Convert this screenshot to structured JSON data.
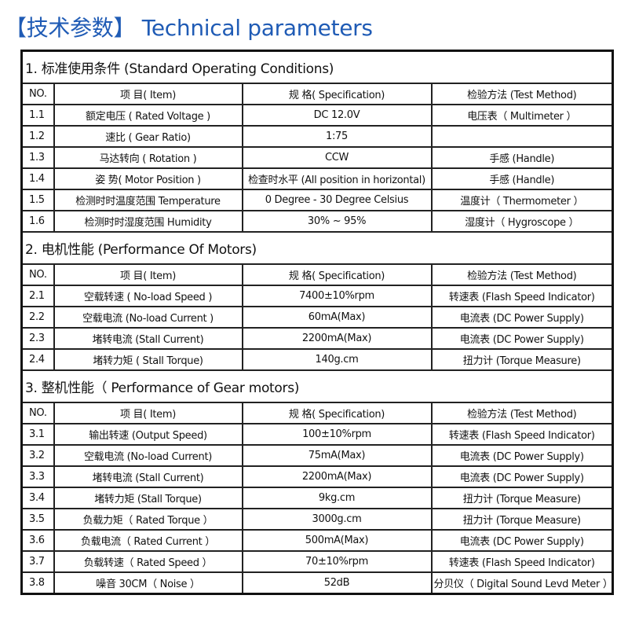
{
  "title": "【技术参数】 Technical parameters",
  "headers": [
    "NO.",
    "项 目( Item)",
    "规 格( Specification)",
    "检验方法 (Test Method)"
  ],
  "sections": [
    {
      "title": "1. 标准使用条件 (Standard Operating Conditions)",
      "rows": [
        [
          "1.1",
          "额定电压 ( Rated Voltage )",
          "DC 12.0V",
          "电压表（ Multimeter ）"
        ],
        [
          "1.2",
          "速比 ( Gear Ratio)",
          "1:75",
          ""
        ],
        [
          "1.3",
          "马达转向 ( Rotation )",
          "CCW",
          "手感 (Handle)"
        ],
        [
          "1.4",
          "姿 势( Motor Position )",
          "检查时水平 (All position in horizontal)",
          "手感 (Handle)"
        ],
        [
          "1.5",
          "检测时时温度范围 Temperature",
          "0 Degree - 30 Degree Celsius",
          "温度计（ Thermometer ）"
        ],
        [
          "1.6",
          "检测时时湿度范围 Humidity",
          "30% ~ 95%",
          "湿度计（ Hygroscope ）"
        ]
      ]
    },
    {
      "title": "2. 电机性能 (Performance Of Motors)",
      "rows": [
        [
          "2.1",
          "空载转速 ( No-load Speed )",
          "7400±10%rpm",
          "转速表 (Flash Speed Indicator)"
        ],
        [
          "2.2",
          "空载电流 (No-load Current )",
          "60mA(Max)",
          "电流表 (DC Power Supply)"
        ],
        [
          "2.3",
          "堵转电流 (Stall Current)",
          "2200mA(Max)",
          "电流表 (DC Power Supply)"
        ],
        [
          "2.4",
          "堵转力矩 ( Stall Torque)",
          "140g.cm",
          "扭力计 (Torque Measure)"
        ]
      ]
    },
    {
      "title": "3. 整机性能（ Performance of Gear motors)",
      "rows": [
        [
          "3.1",
          "输出转速 (Output Speed)",
          "100±10%rpm",
          "转速表 (Flash Speed Indicator)"
        ],
        [
          "3.2",
          "空载电流 (No-load Current)",
          "75mA(Max)",
          "电流表 (DC Power Supply)"
        ],
        [
          "3.3",
          "堵转电流 (Stall Current)",
          "2200mA(Max)",
          "电流表 (DC Power Supply)"
        ],
        [
          "3.4",
          "堵转力矩 (Stall Torque)",
          "9kg.cm",
          "扭力计 (Torque Measure)"
        ],
        [
          "3.5",
          "负载力矩（ Rated Torque ）",
          "3000g.cm",
          "扭力计 (Torque Measure)"
        ],
        [
          "3.6",
          "负载电流（ Rated Current ）",
          "500mA(Max)",
          "电流表 (DC Power Supply)"
        ],
        [
          "3.7",
          "负载转速（ Rated Speed ）",
          "70±10%rpm",
          "转速表 (Flash Speed Indicator)"
        ],
        [
          "3.8",
          "噪音 30CM（ Noise ）",
          "52dB",
          "分贝仪（ Digital Sound Levd Meter ）"
        ]
      ]
    }
  ]
}
